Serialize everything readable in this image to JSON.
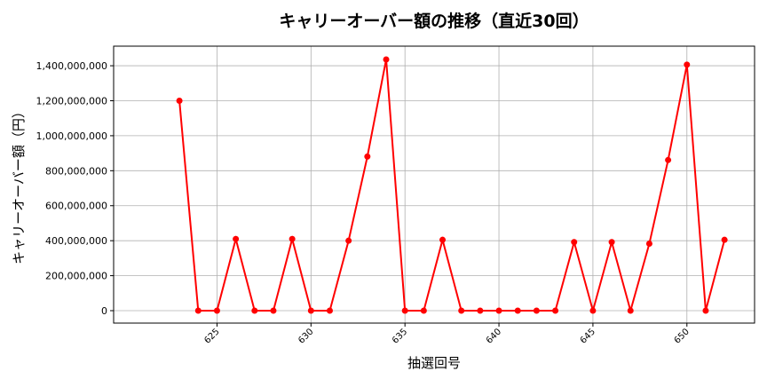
{
  "chart_data": {
    "type": "line",
    "title": "キャリーオーバー額の推移（直近30回）",
    "xlabel": "抽選回号",
    "ylabel": "キャリーオーバー額（円）",
    "x": [
      623,
      624,
      625,
      626,
      627,
      628,
      629,
      630,
      631,
      632,
      633,
      634,
      635,
      636,
      637,
      638,
      639,
      640,
      641,
      642,
      643,
      644,
      645,
      646,
      647,
      648,
      649,
      650,
      651,
      652
    ],
    "values": [
      1200000000,
      0,
      0,
      410000000,
      0,
      0,
      410000000,
      0,
      0,
      400000000,
      881000000,
      1436000000,
      0,
      0,
      405000000,
      0,
      0,
      0,
      0,
      0,
      0,
      392000000,
      0,
      392000000,
      0,
      383000000,
      861000000,
      1406000000,
      0,
      405000000
    ],
    "xticks": [
      625,
      630,
      635,
      640,
      645,
      650
    ],
    "yticks": [
      0,
      200000000,
      400000000,
      600000000,
      800000000,
      1000000000,
      1200000000,
      1400000000
    ],
    "ytick_labels": [
      "0",
      "200,000,000",
      "400,000,000",
      "600,000,000",
      "800,000,000",
      "1,000,000,000",
      "1,200,000,000",
      "1,400,000,000"
    ],
    "xlim": [
      619.5,
      653.6
    ],
    "ylim": [
      -71000000,
      1512000000
    ],
    "grid": true,
    "line_color": "#ff0000",
    "marker": "circle"
  }
}
